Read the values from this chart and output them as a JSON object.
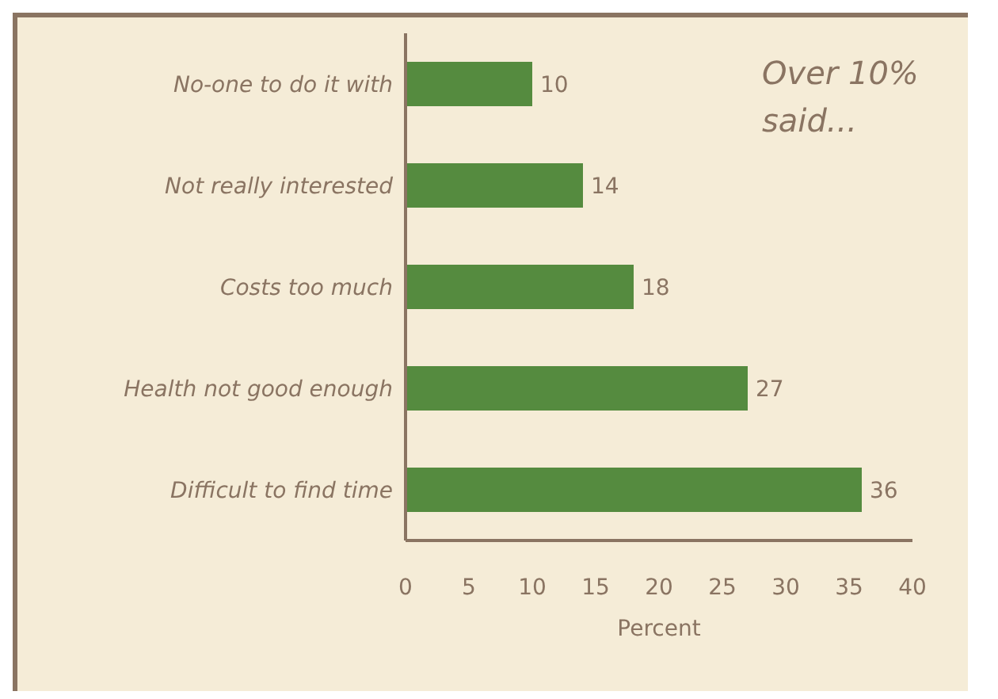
{
  "chart_data": {
    "type": "bar",
    "orientation": "horizontal",
    "xlabel": "Percent",
    "annotations": [
      "Over 10% said..."
    ],
    "categories": [
      "No-one to do it with",
      "Not really interested",
      "Costs too much",
      "Health not good enough",
      "Difficult to find time"
    ],
    "values": [
      10,
      14,
      18,
      27,
      36
    ],
    "color": "#558b3f",
    "xlim": [
      0,
      40
    ],
    "xticks": [
      0,
      5,
      10,
      15,
      20,
      25,
      30,
      35,
      40
    ],
    "grid": false,
    "data_labels": true
  }
}
